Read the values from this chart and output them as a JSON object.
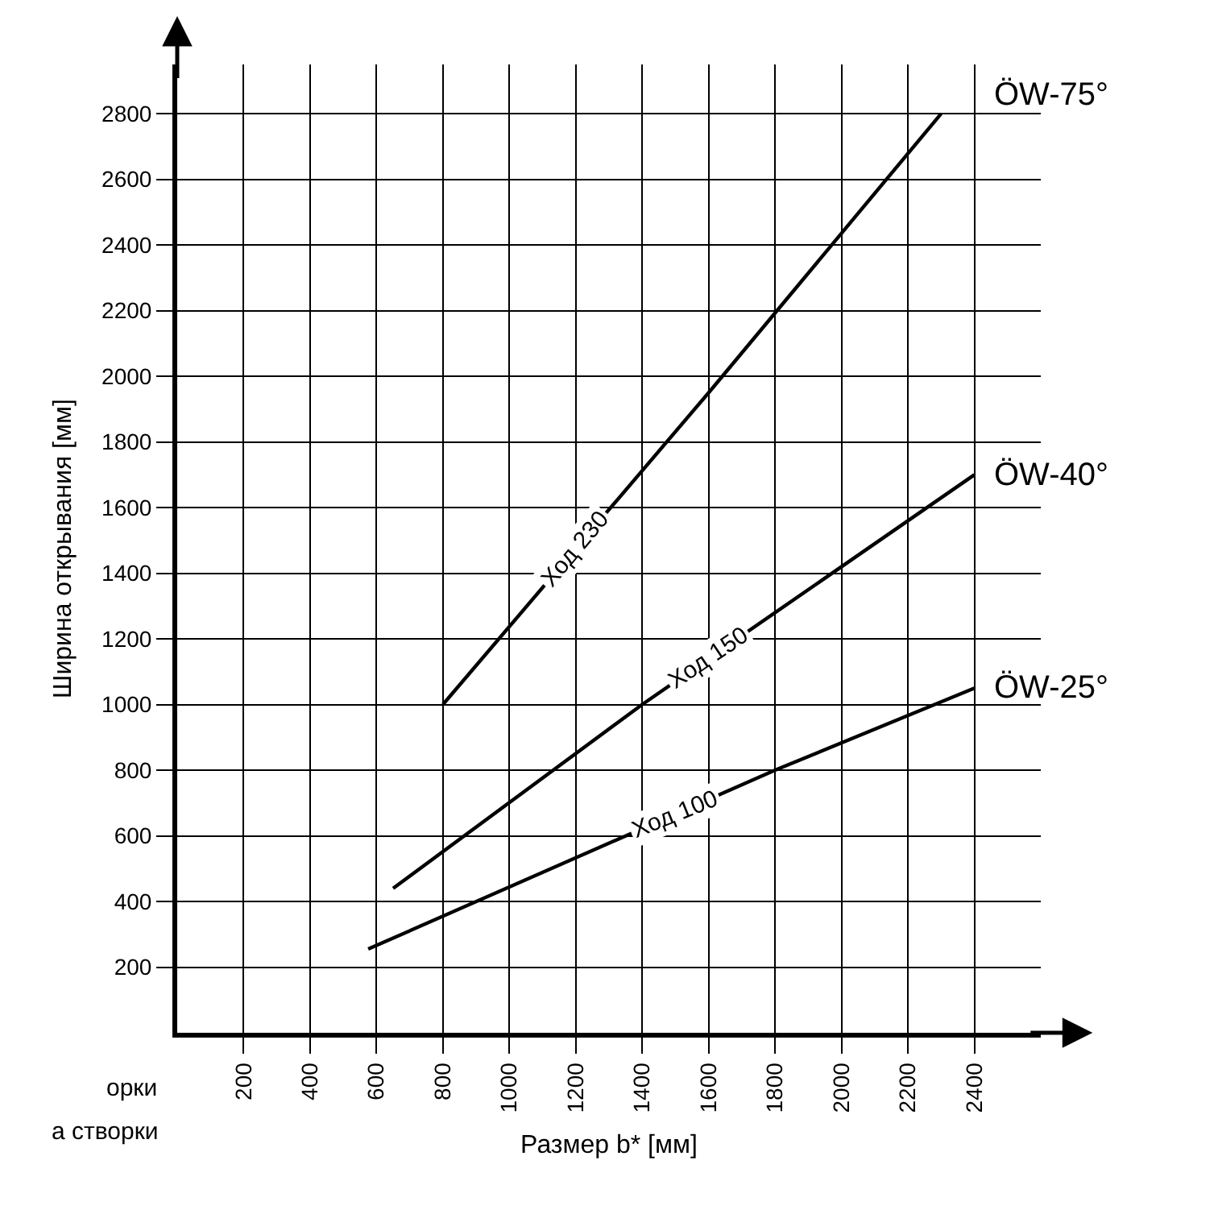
{
  "chart_data": {
    "type": "line",
    "xlabel": "Размер b* [мм]",
    "ylabel": "Ширина открывания [мм]",
    "series": [
      {
        "name": "ÖW-75°",
        "color": "#000000",
        "x": [
          800,
          1600,
          2300
        ],
        "values": [
          1000,
          1950,
          2800
        ]
      },
      {
        "name": "ÖW-40°",
        "color": "#000000",
        "x": [
          650,
          1400,
          2400
        ],
        "values": [
          440,
          1000,
          1700
        ]
      },
      {
        "name": "ÖW-25°",
        "color": "#000000",
        "x": [
          575,
          1800,
          2400
        ],
        "values": [
          255,
          800,
          1050
        ]
      }
    ],
    "annotations": [
      {
        "text": "Ход 230",
        "x": 1200,
        "y": 1475
      },
      {
        "text": "Ход 150",
        "x": 1600,
        "y": 1140
      },
      {
        "text": "Ход 100",
        "x": 1500,
        "y": 666
      },
      "орки",
      "а створки"
    ],
    "xlim": [
      0,
      2600
    ],
    "ylim": [
      0,
      2950
    ],
    "xticks": [
      200,
      400,
      600,
      800,
      1000,
      1200,
      1400,
      1600,
      1800,
      2000,
      2200,
      2400
    ],
    "yticks": [
      200,
      400,
      600,
      800,
      1000,
      1200,
      1400,
      1600,
      1800,
      2000,
      2200,
      2400,
      2600,
      2800
    ],
    "grid": true,
    "legend": false,
    "marker": "none",
    "line_style": "solid"
  }
}
